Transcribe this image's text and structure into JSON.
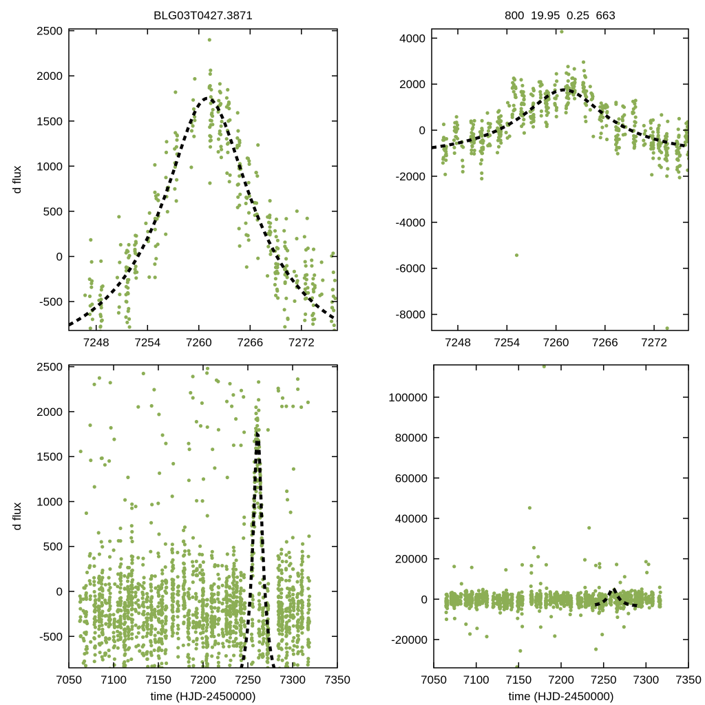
{
  "colors": {
    "background": "#ffffff",
    "points": "#8cae55",
    "curve": "#000000",
    "frame": "#000000",
    "text": "#000000"
  },
  "chart_data": {
    "type": "scatter",
    "description": "2x2 grid of difference-flux microlensing light curves with dashed Paczynski model fit",
    "model": {
      "type": "paczynski",
      "t0": 7261,
      "tE": 19.95,
      "u0": 0.25,
      "amp": 958.6,
      "offset": -2173
    },
    "panels": [
      {
        "id": "top-left",
        "title": "BLG03T0427.3871",
        "xlabel": "",
        "ylabel": "d flux",
        "xlim": [
          7244.8,
          7276.2
        ],
        "ylim": [
          -820,
          2520
        ],
        "xticks": [
          7248,
          7254,
          7260,
          7266,
          7272
        ],
        "yticks": [
          -500,
          0,
          500,
          1000,
          1500,
          2000,
          2500
        ],
        "show_model": true,
        "model_scale": 1,
        "model_domain": null,
        "clusters": [
          {
            "seed": 11,
            "x0": 7247.4,
            "x1": 7275.6,
            "nights": 27,
            "skip": 0.06,
            "x_jitter": 0.22,
            "pts_min": 4,
            "pts_max": 26,
            "ymode": "model",
            "center": 0,
            "sigma": 290,
            "night_sigma": 150,
            "tails": []
          }
        ],
        "outliers": [
          [
            7246.7,
            -430
          ]
        ]
      },
      {
        "id": "top-right",
        "title": "800  19.95  0.25  663",
        "xlabel": "",
        "ylabel": "",
        "xlim": [
          7244.8,
          7276.2
        ],
        "ylim": [
          -8700,
          4400
        ],
        "xticks": [
          7248,
          7254,
          7260,
          7266,
          7272
        ],
        "yticks": [
          -8000,
          -6000,
          -4000,
          -2000,
          0,
          2000,
          4000
        ],
        "show_model": true,
        "model_scale": 1,
        "model_domain": null,
        "clusters": [
          {
            "seed": 23,
            "x0": 7246.6,
            "x1": 7275.8,
            "nights": 29,
            "skip": 0.05,
            "x_jitter": 0.22,
            "pts_min": 6,
            "pts_max": 30,
            "ymode": "model",
            "center": 0,
            "sigma": 520,
            "night_sigma": 320,
            "tails": []
          }
        ],
        "outliers": [
          [
            7255.2,
            -5430
          ],
          [
            7260.7,
            4280
          ],
          [
            7273.6,
            -8600
          ]
        ]
      },
      {
        "id": "bottom-left",
        "title": "",
        "xlabel": "time (HJD-2450000)",
        "ylabel": "d flux",
        "xlim": [
          7050,
          7350
        ],
        "ylim": [
          -850,
          2520
        ],
        "xticks": [
          7050,
          7100,
          7150,
          7200,
          7250,
          7300,
          7350
        ],
        "yticks": [
          -500,
          0,
          500,
          1000,
          1500,
          2000,
          2500
        ],
        "show_model": true,
        "model_scale": 1,
        "model_domain": null,
        "clusters": [
          {
            "seed": 37,
            "x0": 7062,
            "x1": 7318,
            "nights": 62,
            "skip": 0.1,
            "x_jitter": 0.9,
            "pts_min": 10,
            "pts_max": 55,
            "ymode": "const",
            "center": -260,
            "sigma": 300,
            "night_sigma": 130,
            "tails": [
              {
                "frac": 0.05,
                "lo": 350,
                "hi": 2480
              }
            ]
          },
          {
            "seed": 5,
            "x0": 7254.5,
            "x1": 7265.5,
            "nights": 8,
            "skip": 0,
            "x_jitter": 0.25,
            "pts_min": 5,
            "pts_max": 18,
            "ymode": "model",
            "center": 0,
            "sigma": 260,
            "night_sigma": 100,
            "tails": []
          }
        ],
        "outliers": [
          [
            7205,
            2480
          ],
          [
            7215,
            2350
          ],
          [
            7186,
            2210
          ],
          [
            7262,
            2330
          ],
          [
            7293,
            2060
          ],
          [
            7097,
            1820
          ],
          [
            7232,
            2060
          ]
        ]
      },
      {
        "id": "bottom-right",
        "title": "",
        "xlabel": "time (HJD-2450000)",
        "ylabel": "",
        "xlim": [
          7050,
          7350
        ],
        "ylim": [
          -34000,
          116000
        ],
        "xticks": [
          7050,
          7100,
          7150,
          7200,
          7250,
          7300,
          7350
        ],
        "yticks": [
          -20000,
          0,
          20000,
          40000,
          60000,
          80000,
          100000
        ],
        "show_model": true,
        "model_scale": 3,
        "model_domain": [
          7240,
          7290
        ],
        "clusters": [
          {
            "seed": 53,
            "x0": 7062,
            "x1": 7316,
            "nights": 62,
            "skip": 0.1,
            "x_jitter": 0.9,
            "pts_min": 8,
            "pts_max": 45,
            "ymode": "const",
            "center": -300,
            "sigma": 1800,
            "night_sigma": 500,
            "tails": [
              {
                "frac": 0.012,
                "lo": 4000,
                "hi": 19000
              },
              {
                "frac": 0.01,
                "lo": -19000,
                "hi": -4000
              }
            ]
          }
        ],
        "outliers": [
          [
            7180,
            115200
          ],
          [
            7163,
            45200
          ],
          [
            7233,
            35300
          ],
          [
            7168,
            25500
          ],
          [
            7173,
            21000
          ],
          [
            7228,
            19500
          ],
          [
            7135,
            14500
          ],
          [
            7152,
            -25600
          ],
          [
            7241,
            -24800
          ],
          [
            7148,
            -33600
          ]
        ]
      }
    ]
  }
}
